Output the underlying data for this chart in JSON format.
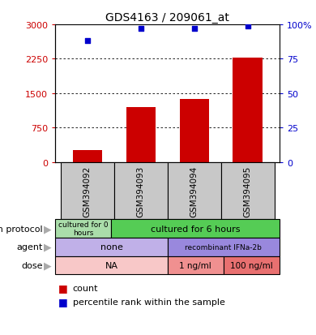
{
  "title": "GDS4163 / 209061_at",
  "samples": [
    "GSM394092",
    "GSM394093",
    "GSM394094",
    "GSM394095"
  ],
  "bar_values": [
    270,
    1200,
    1380,
    2280
  ],
  "scatter_values": [
    88,
    97,
    97,
    99
  ],
  "left_ylim": [
    0,
    3000
  ],
  "right_ylim": [
    0,
    100
  ],
  "left_ticks": [
    0,
    750,
    1500,
    2250,
    3000
  ],
  "right_ticks": [
    0,
    25,
    50,
    75,
    100
  ],
  "left_tick_labels": [
    "0",
    "750",
    "1500",
    "2250",
    "3000"
  ],
  "right_tick_labels": [
    "0",
    "25",
    "50",
    "75",
    "100%"
  ],
  "bar_color": "#cc0000",
  "scatter_color": "#0000cc",
  "row_labels": [
    "growth protocol",
    "agent",
    "dose"
  ],
  "gp_color_0": "#aaddaa",
  "gp_color_1": "#55cc55",
  "agent_color_0": "#c0b0e8",
  "agent_color_1": "#9988dd",
  "dose_color_0": "#f8c8c8",
  "dose_color_1": "#f09090",
  "dose_color_2": "#e87070",
  "legend_count_color": "#cc0000",
  "legend_pct_color": "#0000cc",
  "bg_color": "#ffffff",
  "sample_bg_color": "#c8c8c8"
}
